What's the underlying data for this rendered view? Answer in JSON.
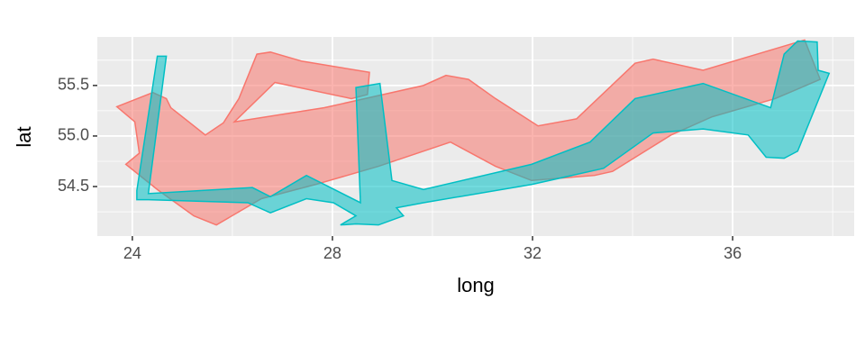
{
  "chart_data": {
    "type": "polygon",
    "x_label": "long",
    "y_label": "lat",
    "xlim": [
      23.3,
      38.43
    ],
    "ylim": [
      54.01,
      55.98
    ],
    "xticks": [
      24,
      28,
      32,
      36
    ],
    "yticks": [
      54.5,
      {
        "value": 55,
        "label": "55.0"
      },
      55.5
    ],
    "xminorticks": [
      26,
      30,
      34,
      38
    ],
    "yminorticks": [
      54.25,
      54.75,
      55.25,
      55.75
    ],
    "grid": true,
    "fill_opacity": 0.55,
    "series": [
      {
        "color": "#F8766D",
        "x": [
          23.69,
          24.41,
          24.68,
          24.77,
          25.46,
          25.82,
          26.13,
          26.49,
          26.76,
          27.39,
          28.74,
          28.7,
          28.38,
          26.85,
          26.04,
          27.84,
          29.82,
          30.27,
          30.72,
          31.26,
          32.11,
          32.88,
          34.05,
          34.41,
          35.41,
          37.44,
          37.75,
          36.85,
          35.59,
          34.77,
          33.6,
          33.24,
          31.98,
          31.26,
          30.36,
          28.92,
          27.66,
          26.58,
          25.68,
          25.23,
          24.5,
          23.87,
          24.14,
          24.05
        ],
        "values": [
          55.29,
          55.43,
          55.37,
          55.28,
          55.01,
          55.13,
          55.37,
          55.81,
          55.83,
          55.74,
          55.63,
          55.41,
          55.37,
          55.53,
          55.14,
          55.28,
          55.5,
          55.6,
          55.56,
          55.37,
          55.1,
          55.17,
          55.72,
          55.76,
          55.65,
          55.95,
          55.56,
          55.37,
          55.19,
          55.01,
          54.65,
          54.61,
          54.56,
          54.7,
          54.94,
          54.7,
          54.52,
          54.38,
          54.12,
          54.21,
          54.47,
          54.72,
          54.83,
          55.14
        ]
      },
      {
        "color": "#00BFC4",
        "x": [
          24.5,
          24.68,
          24.32,
          26.4,
          26.76,
          27.48,
          28.56,
          28.47,
          28.95,
          29.19,
          29.82,
          31.98,
          33.15,
          34.05,
          35.41,
          36.76,
          37.03,
          37.3,
          37.69,
          37.71,
          37.93,
          37.3,
          37.03,
          36.67,
          36.31,
          35.41,
          34.41,
          33.42,
          31.98,
          29.82,
          29.28,
          29.42,
          28.92,
          28.47,
          28.16,
          28.47,
          28.02,
          27.48,
          26.76,
          26.31,
          24.32,
          24.09,
          24.09
        ],
        "values": [
          55.79,
          55.79,
          54.43,
          54.49,
          54.4,
          54.61,
          54.34,
          55.48,
          55.52,
          54.56,
          54.47,
          54.72,
          54.94,
          55.37,
          55.52,
          55.28,
          55.81,
          55.94,
          55.93,
          55.65,
          55.62,
          54.85,
          54.78,
          54.79,
          55.01,
          55.07,
          55.03,
          54.68,
          54.52,
          54.34,
          54.29,
          54.21,
          54.12,
          54.13,
          54.12,
          54.21,
          54.34,
          54.38,
          54.24,
          54.34,
          54.37,
          54.37,
          54.46
        ]
      }
    ]
  }
}
